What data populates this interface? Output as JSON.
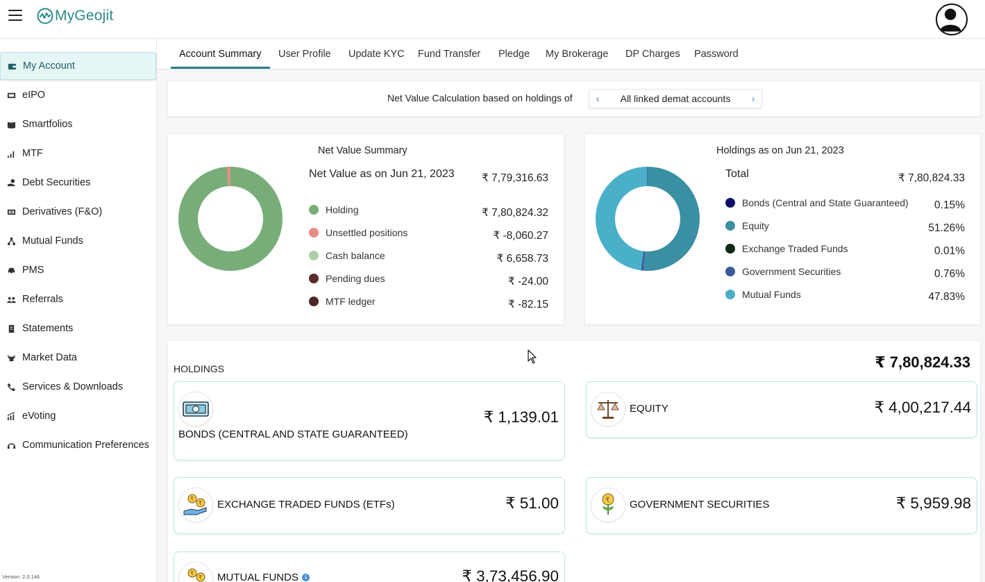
{
  "app": {
    "name": "MyGeojit",
    "version": "Version: 2.0.146"
  },
  "sidebar": {
    "items": [
      {
        "label": "My Account",
        "icon": "wallet-icon",
        "active": true
      },
      {
        "label": "eIPO",
        "icon": "ipo-icon"
      },
      {
        "label": "Smartfolios",
        "icon": "book-icon"
      },
      {
        "label": "MTF",
        "icon": "bar-chart-icon"
      },
      {
        "label": "Debt Securities",
        "icon": "hand-coins-icon"
      },
      {
        "label": "Derivatives (F&O)",
        "icon": "ticket-icon"
      },
      {
        "label": "Mutual Funds",
        "icon": "hierarchy-icon"
      },
      {
        "label": "PMS",
        "icon": "car-icon"
      },
      {
        "label": "Referrals",
        "icon": "people-icon"
      },
      {
        "label": "Statements",
        "icon": "document-icon"
      },
      {
        "label": "Market Data",
        "icon": "bull-icon"
      },
      {
        "label": "Services & Downloads",
        "icon": "phone-icon"
      },
      {
        "label": "eVoting",
        "icon": "growth-chart-icon"
      },
      {
        "label": "Communication Preferences",
        "icon": "headset-icon"
      }
    ]
  },
  "tabs": [
    {
      "label": "Account Summary",
      "active": true
    },
    {
      "label": "User Profile"
    },
    {
      "label": "Update KYC"
    },
    {
      "label": "Fund Transfer"
    },
    {
      "label": "Pledge"
    },
    {
      "label": "My Brokerage"
    },
    {
      "label": "DP Charges"
    },
    {
      "label": "Password"
    }
  ],
  "net_calc": {
    "label": "Net Value Calculation based on holdings of",
    "selected": "All linked demat accounts"
  },
  "net_value_summary": {
    "title": "Net Value Summary",
    "headline": "Net Value as on Jun 21, 2023",
    "headline_value": "₹ 7,79,316.63",
    "items": [
      {
        "label": "Holding",
        "value": "₹ 7,80,824.32",
        "color": "#78ad7a"
      },
      {
        "label": "Unsettled positions",
        "value": "₹ -8,060.27",
        "color": "#e98c83"
      },
      {
        "label": "Cash balance",
        "value": "₹ 6,658.73",
        "color": "#aed0a6"
      },
      {
        "label": "Pending dues",
        "value": "₹ -24.00",
        "color": "#5a2a2a"
      },
      {
        "label": "MTF ledger",
        "value": "₹ -82.15",
        "color": "#4e2727"
      }
    ]
  },
  "holdings_breakdown": {
    "title": "Holdings as on Jun 21, 2023",
    "total_label": "Total",
    "total_value": "₹ 7,80,824.33",
    "items": [
      {
        "label": "Bonds (Central and State Guaranteed)",
        "value": "0.15%",
        "pct": 0.15,
        "color": "#10106b"
      },
      {
        "label": "Equity",
        "value": "51.26%",
        "pct": 51.26,
        "color": "#3a8fa3"
      },
      {
        "label": "Exchange Traded Funds",
        "value": "0.01%",
        "pct": 0.01,
        "color": "#0c2a10"
      },
      {
        "label": "Government Securities",
        "value": "0.76%",
        "pct": 0.76,
        "color": "#3b5a9a"
      },
      {
        "label": "Mutual Funds",
        "value": "47.83%",
        "pct": 47.83,
        "color": "#4aafc9"
      }
    ]
  },
  "holdings": {
    "label": "HOLDINGS",
    "total": "₹ 7,80,824.33",
    "cards": [
      {
        "name": "BONDS (CENTRAL AND STATE GUARANTEED)",
        "value": "₹ 1,139.01",
        "icon": "banknote-icon"
      },
      {
        "name": "EQUITY",
        "value": "₹ 4,00,217.44",
        "icon": "scale-icon"
      },
      {
        "name": "EXCHANGE TRADED FUNDS (ETFs)",
        "value": "₹ 51.00",
        "icon": "coins-hand-icon"
      },
      {
        "name": "GOVERNMENT SECURITIES",
        "value": "₹ 5,959.98",
        "icon": "coin-plant-icon"
      },
      {
        "name": "MUTUAL FUNDS",
        "value": "₹ 3,73,456.90",
        "icon": "coins-hand-icon"
      }
    ]
  }
}
